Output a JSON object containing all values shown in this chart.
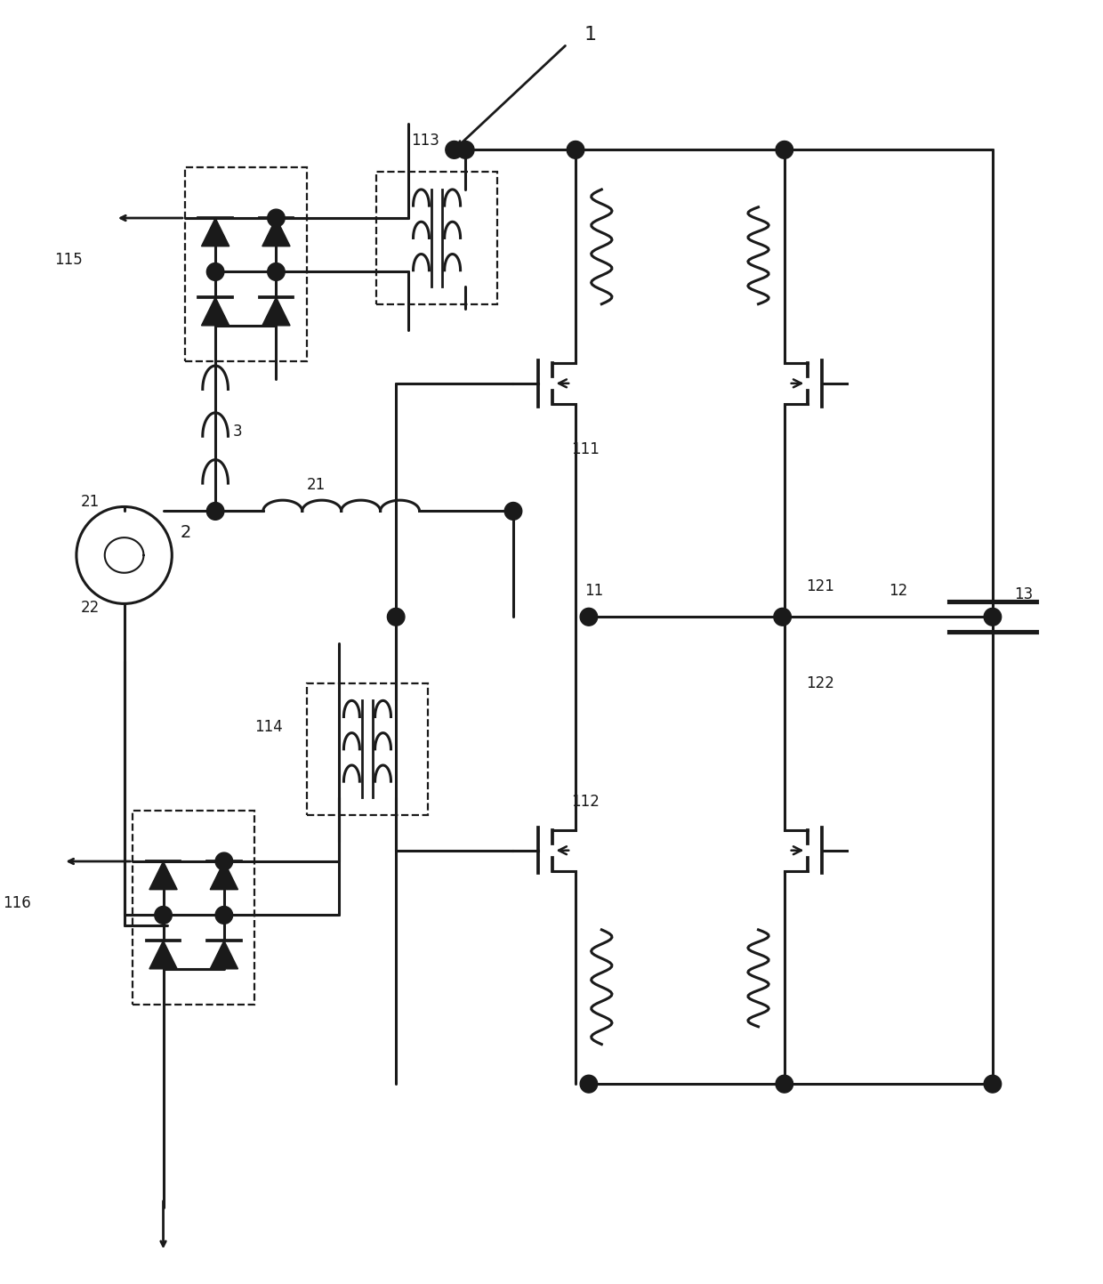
{
  "bg_color": "#ffffff",
  "lc": "#1a1a1a",
  "lw": 2.2,
  "dlw": 1.6,
  "fig_w": 12.4,
  "fig_h": 14.43,
  "fs": 14,
  "sfs": 12
}
